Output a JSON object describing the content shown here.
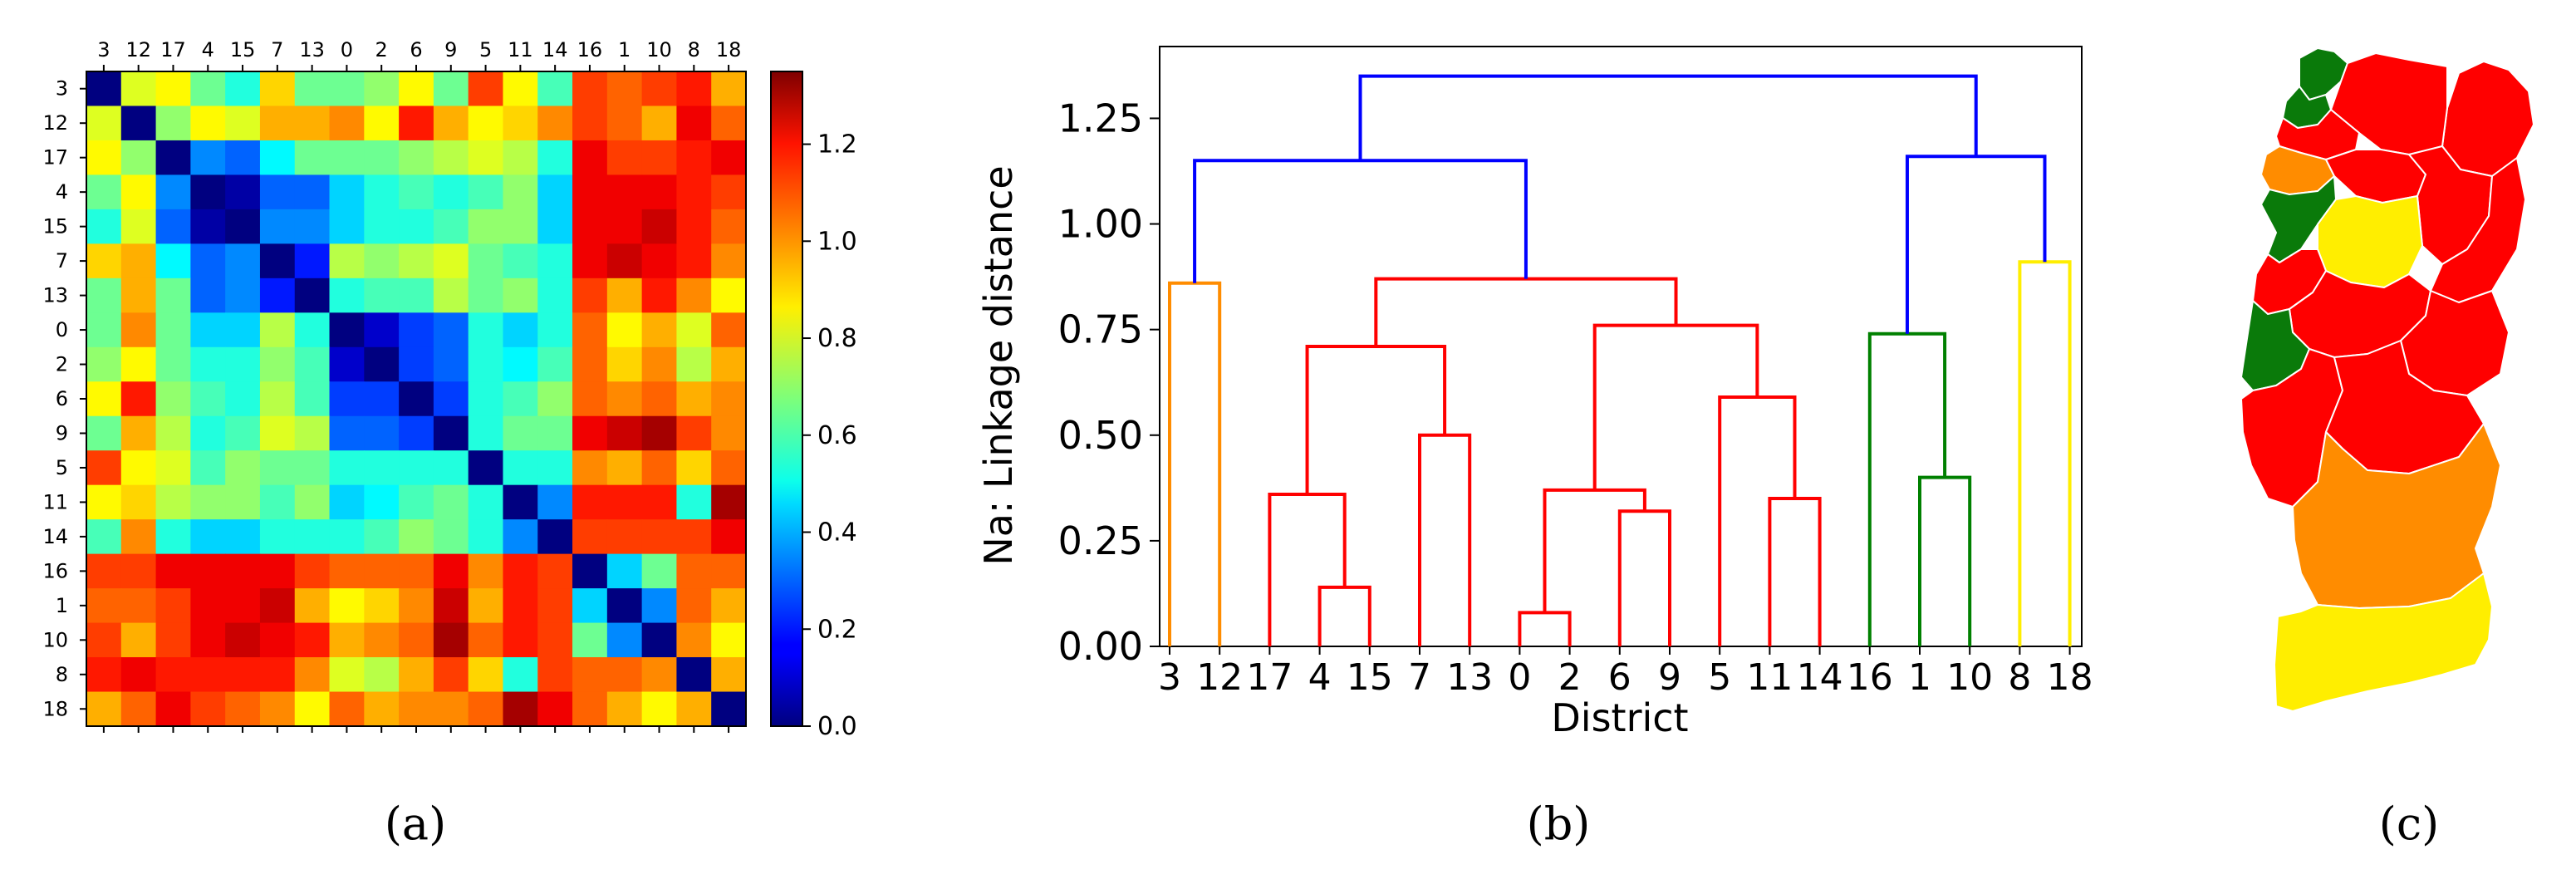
{
  "panels": {
    "a": {
      "caption": "(a)"
    },
    "b": {
      "caption": "(b)"
    },
    "c": {
      "caption": "(c)"
    }
  },
  "chart_data": [
    {
      "type": "heatmap",
      "panel": "a",
      "title": "",
      "labels": [
        "3",
        "12",
        "17",
        "4",
        "15",
        "7",
        "13",
        "0",
        "2",
        "6",
        "9",
        "5",
        "11",
        "14",
        "16",
        "1",
        "10",
        "8",
        "18"
      ],
      "colorbar": {
        "min": 0.0,
        "max": 1.35,
        "ticks": [
          "0.0",
          "0.2",
          "0.4",
          "0.6",
          "0.8",
          "1.0",
          "1.2"
        ],
        "tick_values": [
          0,
          0.2,
          0.4,
          0.6,
          0.8,
          1.0,
          1.2
        ],
        "colormap": "jet"
      },
      "matrix": [
        [
          0.0,
          0.8,
          0.85,
          0.65,
          0.55,
          0.9,
          0.65,
          0.65,
          0.7,
          0.85,
          0.65,
          1.1,
          0.85,
          0.6,
          1.1,
          1.05,
          1.1,
          1.15,
          0.95
        ],
        [
          0.8,
          0.0,
          0.7,
          0.85,
          0.8,
          0.95,
          0.95,
          1.0,
          0.85,
          1.15,
          0.95,
          0.85,
          0.9,
          1.0,
          1.1,
          1.05,
          0.95,
          1.2,
          1.05
        ],
        [
          0.85,
          0.7,
          0.0,
          0.35,
          0.3,
          0.5,
          0.65,
          0.65,
          0.65,
          0.7,
          0.75,
          0.8,
          0.75,
          0.55,
          1.2,
          1.1,
          1.1,
          1.15,
          1.2
        ],
        [
          0.65,
          0.85,
          0.35,
          0.0,
          0.05,
          0.3,
          0.3,
          0.45,
          0.55,
          0.6,
          0.55,
          0.6,
          0.7,
          0.45,
          1.2,
          1.2,
          1.2,
          1.15,
          1.1
        ],
        [
          0.55,
          0.8,
          0.3,
          0.05,
          0.0,
          0.35,
          0.35,
          0.45,
          0.55,
          0.55,
          0.6,
          0.7,
          0.7,
          0.45,
          1.2,
          1.2,
          1.25,
          1.15,
          1.05
        ],
        [
          0.9,
          0.95,
          0.5,
          0.3,
          0.35,
          0.0,
          0.2,
          0.75,
          0.7,
          0.75,
          0.8,
          0.65,
          0.6,
          0.55,
          1.2,
          1.25,
          1.2,
          1.15,
          1.0
        ],
        [
          0.65,
          0.95,
          0.65,
          0.3,
          0.35,
          0.2,
          0.0,
          0.55,
          0.6,
          0.6,
          0.75,
          0.65,
          0.7,
          0.55,
          1.1,
          0.95,
          1.15,
          1.0,
          0.85
        ],
        [
          0.65,
          1.0,
          0.65,
          0.45,
          0.45,
          0.75,
          0.55,
          0.0,
          0.1,
          0.25,
          0.3,
          0.55,
          0.45,
          0.55,
          1.05,
          0.85,
          0.95,
          0.8,
          1.05
        ],
        [
          0.7,
          0.85,
          0.65,
          0.55,
          0.55,
          0.7,
          0.6,
          0.1,
          0.0,
          0.25,
          0.3,
          0.55,
          0.5,
          0.6,
          1.05,
          0.9,
          1.0,
          0.75,
          0.95
        ],
        [
          0.85,
          1.15,
          0.7,
          0.6,
          0.55,
          0.75,
          0.6,
          0.25,
          0.25,
          0.0,
          0.25,
          0.55,
          0.6,
          0.7,
          1.05,
          1.0,
          1.05,
          0.95,
          1.0
        ],
        [
          0.65,
          0.95,
          0.75,
          0.55,
          0.6,
          0.8,
          0.75,
          0.3,
          0.3,
          0.25,
          0.0,
          0.55,
          0.65,
          0.65,
          1.2,
          1.25,
          1.3,
          1.1,
          1.0
        ],
        [
          1.1,
          0.85,
          0.8,
          0.6,
          0.7,
          0.65,
          0.65,
          0.55,
          0.55,
          0.55,
          0.55,
          0.0,
          0.55,
          0.55,
          1.0,
          0.95,
          1.05,
          0.9,
          1.05
        ],
        [
          0.85,
          0.9,
          0.75,
          0.7,
          0.7,
          0.6,
          0.7,
          0.45,
          0.5,
          0.6,
          0.65,
          0.55,
          0.0,
          0.35,
          1.15,
          1.15,
          1.15,
          0.55,
          1.3
        ],
        [
          0.6,
          1.0,
          0.55,
          0.45,
          0.45,
          0.55,
          0.55,
          0.55,
          0.6,
          0.7,
          0.65,
          0.55,
          0.35,
          0.0,
          1.1,
          1.1,
          1.1,
          1.1,
          1.2
        ],
        [
          1.1,
          1.1,
          1.2,
          1.2,
          1.2,
          1.2,
          1.1,
          1.05,
          1.05,
          1.05,
          1.2,
          1.0,
          1.15,
          1.1,
          0.0,
          0.45,
          0.65,
          1.05,
          1.05
        ],
        [
          1.05,
          1.05,
          1.1,
          1.2,
          1.2,
          1.25,
          0.95,
          0.85,
          0.9,
          1.0,
          1.25,
          0.95,
          1.15,
          1.1,
          0.45,
          0.0,
          0.35,
          1.05,
          0.95
        ],
        [
          1.1,
          0.95,
          1.1,
          1.2,
          1.25,
          1.2,
          1.15,
          0.95,
          1.0,
          1.05,
          1.3,
          1.05,
          1.15,
          1.1,
          0.65,
          0.35,
          0.0,
          1.0,
          0.85
        ],
        [
          1.15,
          1.2,
          1.15,
          1.15,
          1.15,
          1.15,
          1.0,
          0.8,
          0.75,
          0.95,
          1.1,
          0.9,
          0.55,
          1.1,
          1.05,
          1.05,
          1.0,
          0.0,
          0.95
        ],
        [
          0.95,
          1.05,
          1.2,
          1.1,
          1.05,
          1.0,
          0.85,
          1.05,
          0.95,
          1.0,
          1.0,
          1.05,
          1.3,
          1.2,
          1.05,
          0.95,
          0.85,
          0.95,
          0.0
        ]
      ]
    },
    {
      "type": "dendrogram",
      "panel": "b",
      "title": "",
      "xlabel": "District",
      "ylabel": "Na: Linkage distance",
      "ylim": [
        0,
        1.42
      ],
      "yticks": [
        "0.00",
        "0.25",
        "0.50",
        "0.75",
        "1.00",
        "1.25"
      ],
      "ytick_values": [
        0,
        0.25,
        0.5,
        0.75,
        1.0,
        1.25
      ],
      "leaves": [
        "3",
        "12",
        "17",
        "4",
        "15",
        "7",
        "13",
        "0",
        "2",
        "6",
        "9",
        "5",
        "11",
        "14",
        "16",
        "1",
        "10",
        "8",
        "18"
      ],
      "links": [
        {
          "a": "L3",
          "b": "L4",
          "h": 0.14,
          "color": "#ff0000",
          "id": "n4_15"
        },
        {
          "a": "L2",
          "b": "n4_15",
          "h": 0.36,
          "color": "#ff0000",
          "id": "n17"
        },
        {
          "a": "L5",
          "b": "L6",
          "h": 0.5,
          "color": "#ff0000",
          "id": "n7_13"
        },
        {
          "a": "n17",
          "b": "n7_13",
          "h": 0.71,
          "color": "#ff0000",
          "id": "nLeftRed"
        },
        {
          "a": "L7",
          "b": "L8",
          "h": 0.08,
          "color": "#ff0000",
          "id": "n0_2"
        },
        {
          "a": "L9",
          "b": "L10",
          "h": 0.32,
          "color": "#ff0000",
          "id": "n6_9"
        },
        {
          "a": "n0_2",
          "b": "n6_9",
          "h": 0.37,
          "color": "#ff0000",
          "id": "n0269"
        },
        {
          "a": "L12",
          "b": "L13",
          "h": 0.35,
          "color": "#ff0000",
          "id": "n11_14"
        },
        {
          "a": "L11",
          "b": "n11_14",
          "h": 0.59,
          "color": "#ff0000",
          "id": "n5"
        },
        {
          "a": "n0269",
          "b": "n5",
          "h": 0.76,
          "color": "#ff0000",
          "id": "nRightRed"
        },
        {
          "a": "nLeftRed",
          "b": "nRightRed",
          "h": 0.87,
          "color": "#ff0000",
          "id": "nRed"
        },
        {
          "a": "L0",
          "b": "L1",
          "h": 0.86,
          "color": "#ff8c00",
          "id": "nOrange"
        },
        {
          "a": "nOrange",
          "b": "nRed",
          "h": 1.15,
          "color": "#0000ff",
          "id": "nLeftBlue"
        },
        {
          "a": "L15",
          "b": "L16",
          "h": 0.4,
          "color": "#008000",
          "id": "n1_10"
        },
        {
          "a": "L14",
          "b": "n1_10",
          "h": 0.74,
          "color": "#008000",
          "id": "nGreen"
        },
        {
          "a": "L17",
          "b": "L18",
          "h": 0.91,
          "color": "#ffee00",
          "id": "nYellow"
        },
        {
          "a": "nGreen",
          "b": "nYellow",
          "h": 1.16,
          "color": "#0000ff",
          "id": "nRightBlue"
        },
        {
          "a": "nLeftBlue",
          "b": "nRightBlue",
          "h": 1.35,
          "color": "#0000ff",
          "id": "nRoot"
        }
      ]
    },
    {
      "type": "map",
      "panel": "c",
      "title": "",
      "legend": [],
      "colors": {
        "red": "#ff0000",
        "orange": "#ff8c00",
        "yellow": "#ffee00",
        "green": "#0a7a0a"
      }
    }
  ]
}
